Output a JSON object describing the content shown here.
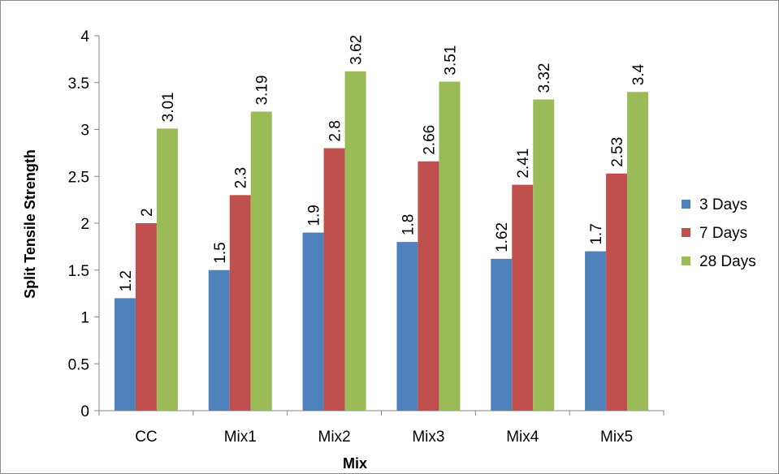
{
  "chart_data": {
    "type": "bar",
    "title": "",
    "xlabel": "Mix",
    "ylabel": "Split Tensile Strength",
    "categories": [
      "CC",
      "Mix1",
      "Mix2",
      "Mix3",
      "Mix4",
      "Mix5"
    ],
    "series": [
      {
        "name": "3 Days",
        "color": "#4f81bd",
        "values": [
          1.2,
          1.5,
          1.9,
          1.8,
          1.62,
          1.7
        ]
      },
      {
        "name": "7 Days",
        "color": "#c0504d",
        "values": [
          2,
          2.3,
          2.8,
          2.66,
          2.41,
          2.53
        ]
      },
      {
        "name": "28 Days",
        "color": "#9bbb59",
        "values": [
          3.01,
          3.19,
          3.62,
          3.51,
          3.32,
          3.4
        ]
      }
    ],
    "ylim": [
      0,
      4
    ],
    "yticks": [
      "0",
      "0.5",
      "1",
      "1.5",
      "2",
      "2.5",
      "3",
      "3.5",
      "4"
    ],
    "grid": false,
    "legend_position": "right"
  }
}
